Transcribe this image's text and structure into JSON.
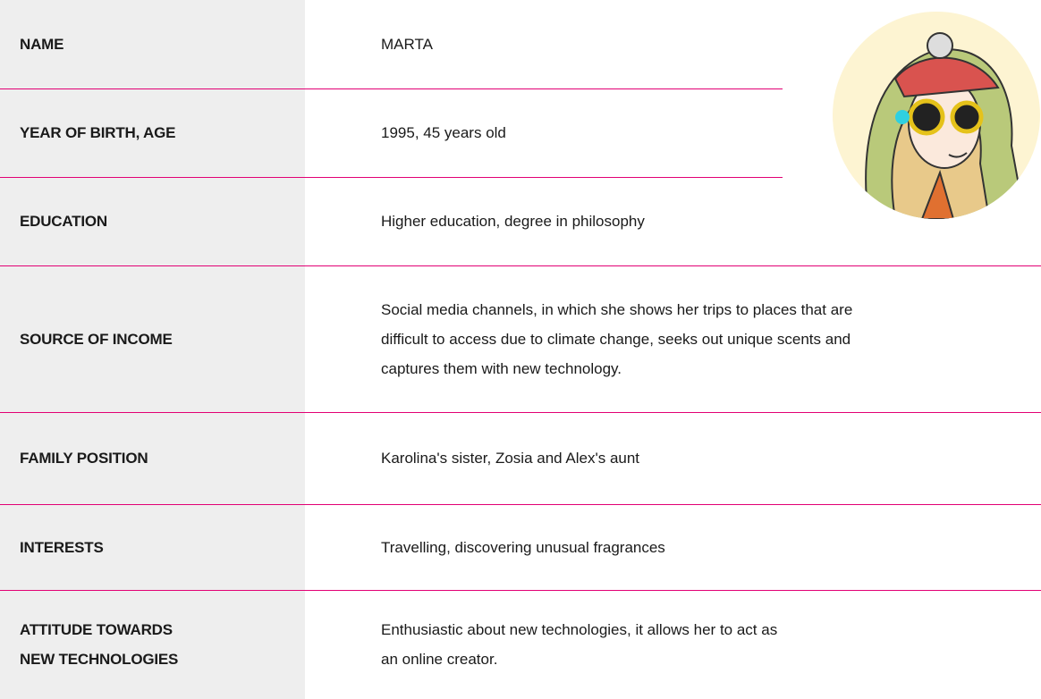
{
  "rows": [
    {
      "label": [
        "NAME"
      ],
      "value": [
        "MARTA"
      ]
    },
    {
      "label": [
        "YEAR OF BIRTH, AGE"
      ],
      "value": [
        "1995, 45 years old"
      ]
    },
    {
      "label": [
        "EDUCATION"
      ],
      "value": [
        "Higher education, degree in philosophy"
      ]
    },
    {
      "label": [
        "SOURCE OF INCOME"
      ],
      "value": [
        "Social media channels, in which she shows her trips to places that are",
        "difficult to access due to climate change, seeks out unique scents and",
        "captures them with new technology."
      ]
    },
    {
      "label": [
        "FAMILY POSITION"
      ],
      "value": [
        "Karolina's sister, Zosia and Alex's aunt"
      ]
    },
    {
      "label": [
        "INTERESTS"
      ],
      "value": [
        "Travelling, discovering unusual fragrances"
      ]
    },
    {
      "label": [
        "ATTITUDE TOWARDS",
        "NEW TECHNOLOGIES"
      ],
      "value": [
        "Enthusiastic about new technologies, it allows her to act as",
        "an online creator."
      ]
    }
  ]
}
